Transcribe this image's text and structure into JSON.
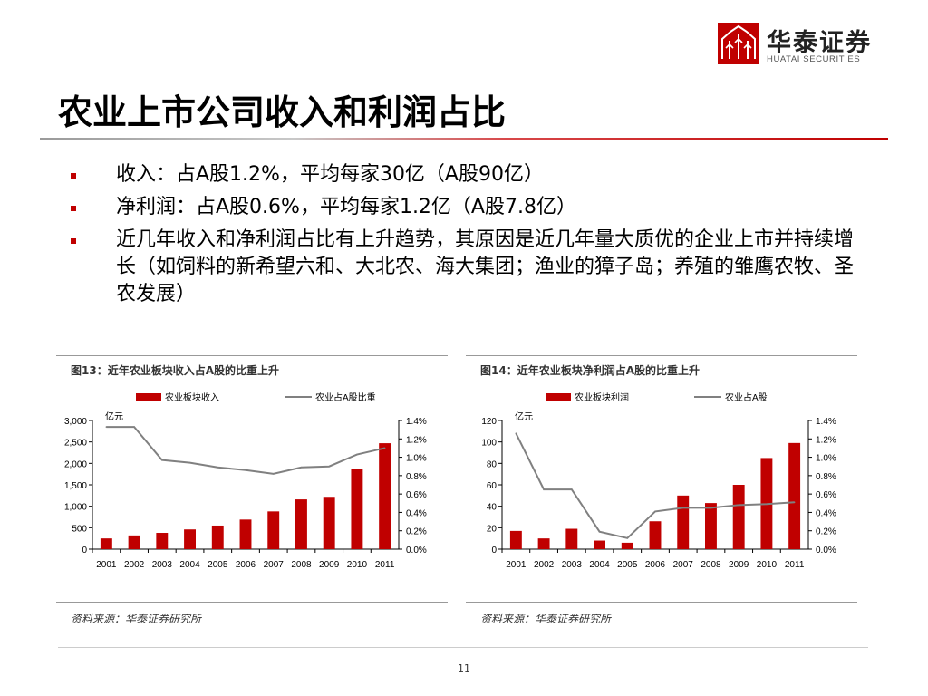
{
  "logo": {
    "name_cn": "华泰证券",
    "name_en": "HUATAI SECURITIES",
    "mark_icon": "huatai-logo-icon",
    "color": "#c00000"
  },
  "title": "农业上市公司收入和利润占比",
  "bullets": [
    {
      "text": "收入：占A股1.2%，平均每家30亿（A股90亿）"
    },
    {
      "text": "净利润：占A股0.6%，平均每家1.2亿（A股7.8亿）"
    },
    {
      "text": "近几年收入和净利润占比有上升趋势，其原因是近几年量大质优的企业上市并持续增长（如饲料的新希望六和、大北农、海大集团；渔业的獐子岛；养殖的雏鹰农牧、圣农发展）"
    }
  ],
  "colors": {
    "bar": "#c00000",
    "line": "#808080",
    "accent": "#c00000"
  },
  "chart_data": [
    {
      "type": "bar",
      "title": "图13：近年农业板块收入占A股的比重上升",
      "source": "资料来源：华泰证券研究所",
      "unit_label": "亿元",
      "categories": [
        "2001",
        "2002",
        "2003",
        "2004",
        "2005",
        "2006",
        "2007",
        "2008",
        "2009",
        "2010",
        "2011"
      ],
      "series": [
        {
          "name": "农业板块收入",
          "type": "bar",
          "axis": "left",
          "values": [
            250,
            320,
            380,
            460,
            550,
            690,
            880,
            1160,
            1220,
            1880,
            2470
          ]
        },
        {
          "name": "农业占A股比重",
          "type": "line",
          "axis": "right",
          "values": [
            1.33,
            1.33,
            0.97,
            0.94,
            0.89,
            0.86,
            0.82,
            0.89,
            0.9,
            1.03,
            1.1
          ]
        }
      ],
      "ylim_left": [
        0,
        3000
      ],
      "yticks_left": [
        "0",
        "500",
        "1,000",
        "1,500",
        "2,000",
        "2,500",
        "3,000"
      ],
      "ylim_right": [
        0,
        1.4
      ],
      "yticks_right": [
        "0.0%",
        "0.2%",
        "0.4%",
        "0.6%",
        "0.8%",
        "1.0%",
        "1.2%",
        "1.4%"
      ],
      "legend": "top"
    },
    {
      "type": "bar",
      "title": "图14：近年农业板块净利润占A股的比重上升",
      "source": "资料来源：华泰证券研究所",
      "unit_label": "亿元",
      "categories": [
        "2001",
        "2002",
        "2003",
        "2004",
        "2005",
        "2006",
        "2007",
        "2008",
        "2009",
        "2010",
        "2011"
      ],
      "series": [
        {
          "name": "农业板块利润",
          "type": "bar",
          "axis": "left",
          "values": [
            17,
            10,
            19,
            8,
            6,
            26,
            50,
            43,
            60,
            85,
            99
          ]
        },
        {
          "name": "农业占A股",
          "type": "line",
          "axis": "right",
          "values": [
            1.26,
            0.65,
            0.65,
            0.19,
            0.12,
            0.41,
            0.45,
            0.45,
            0.48,
            0.49,
            0.51
          ]
        }
      ],
      "ylim_left": [
        0,
        120
      ],
      "yticks_left": [
        "0",
        "20",
        "40",
        "60",
        "80",
        "100",
        "120"
      ],
      "ylim_right": [
        0,
        1.4
      ],
      "yticks_right": [
        "0.0%",
        "0.2%",
        "0.4%",
        "0.6%",
        "0.8%",
        "1.0%",
        "1.2%",
        "1.4%"
      ],
      "legend": "top"
    }
  ],
  "page_number": "11"
}
